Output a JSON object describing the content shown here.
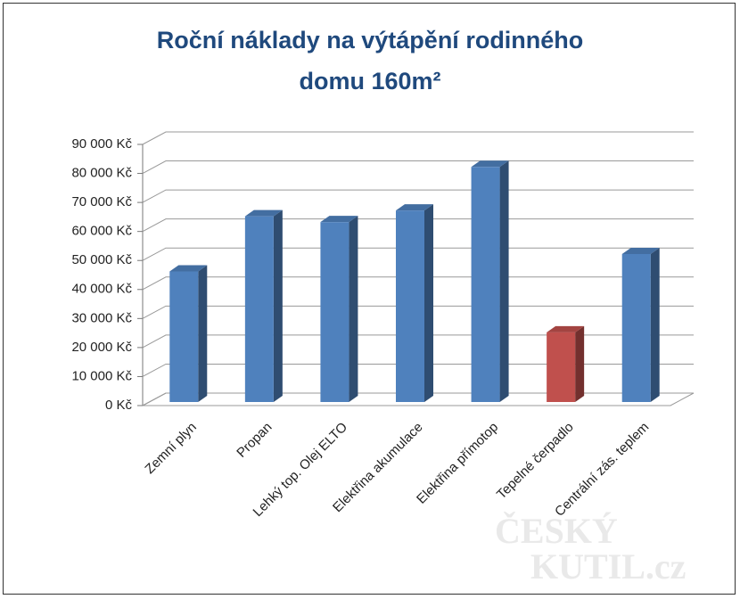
{
  "chart_data": {
    "type": "bar3d",
    "title": "Roční náklady na výtápění rodinného domu 160m²",
    "categories": [
      "Zemní plyn",
      "Propan",
      "Lehký top. Olej ELTO",
      "Elektřina akumulace",
      "Elektřina přímotop",
      "Tepelné čerpadlo",
      "Centrální zás. teplem"
    ],
    "values": [
      45000,
      64000,
      62000,
      66000,
      81000,
      24000,
      51000
    ],
    "colors": [
      "#4f81bd",
      "#4f81bd",
      "#4f81bd",
      "#4f81bd",
      "#4f81bd",
      "#c0504d",
      "#4f81bd"
    ],
    "ylim": [
      0,
      90000
    ],
    "yticks": [
      {
        "value": 0,
        "label": "0 Kč"
      },
      {
        "value": 10000,
        "label": "10 000 Kč"
      },
      {
        "value": 20000,
        "label": "20 000 Kč"
      },
      {
        "value": 30000,
        "label": "30 000 Kč"
      },
      {
        "value": 40000,
        "label": "40 000 Kč"
      },
      {
        "value": 50000,
        "label": "50 000 Kč"
      },
      {
        "value": 60000,
        "label": "60 000 Kč"
      },
      {
        "value": 70000,
        "label": "70 000 Kč"
      },
      {
        "value": 80000,
        "label": "80 000 Kč"
      },
      {
        "value": 90000,
        "label": "90 000 Kč"
      }
    ],
    "grid": true,
    "watermark": [
      "ČESKÝ",
      "KUTIL.cz"
    ]
  }
}
